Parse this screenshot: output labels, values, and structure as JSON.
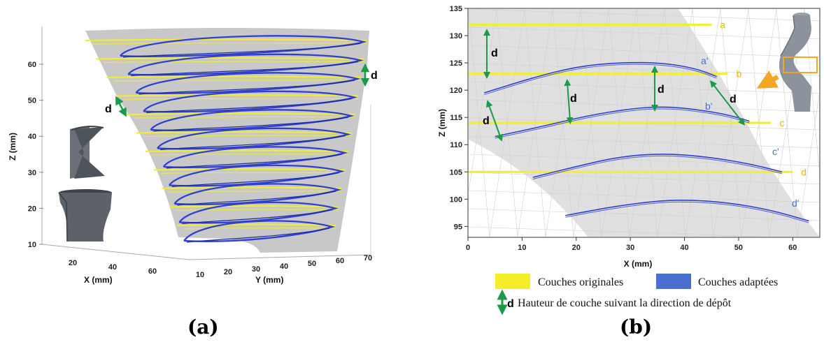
{
  "captions": {
    "a": "(a)",
    "b": "(b)"
  },
  "colors": {
    "original": "#f4ee2a",
    "adapted": "#2f3fd0",
    "arrow": "#1a9a4a",
    "surface": "#c8c8c8",
    "orange": "#f5a623",
    "orig_label": "#f0b400",
    "adapt_label": "#4a6fd0"
  },
  "chart_data": [
    {
      "type": "line",
      "panel": "a",
      "title": "",
      "xlabel": "X (mm)",
      "ylabel": "Z (mm)",
      "zlabel": "Y (mm)",
      "x_ticks": [
        "20",
        "40",
        "60"
      ],
      "y_ticks": [
        "10",
        "20",
        "30",
        "40",
        "50",
        "60"
      ],
      "z_ticks": [
        "10",
        "20",
        "30",
        "40",
        "50",
        "60",
        "70"
      ],
      "annotations": [
        "d",
        "d"
      ]
    },
    {
      "type": "line",
      "panel": "b",
      "title": "",
      "xlabel": "X (mm)",
      "ylabel": "Z (mm)",
      "xlim": [
        0,
        65
      ],
      "ylim": [
        93,
        135
      ],
      "x_ticks": [
        0,
        10,
        20,
        30,
        40,
        50,
        60
      ],
      "y_ticks": [
        95,
        100,
        105,
        110,
        115,
        120,
        125,
        130,
        135
      ],
      "series": [
        {
          "name": "Couches originales",
          "lines": [
            {
              "label": "a",
              "z": 132,
              "x": [
                0,
                45
              ]
            },
            {
              "label": "b",
              "z": 123,
              "x": [
                0,
                48
              ]
            },
            {
              "label": "c",
              "z": 114,
              "x": [
                0,
                56
              ]
            },
            {
              "label": "d",
              "z": 105,
              "x": [
                0,
                60
              ]
            }
          ]
        },
        {
          "name": "Couches adaptées",
          "curves": [
            {
              "label": "a'",
              "x": [
                3,
                12,
                20,
                28,
                36,
                42,
                46
              ],
              "z": [
                119.5,
                122.3,
                124.3,
                125.1,
                125.0,
                124.0,
                122.5
              ]
            },
            {
              "label": "b'",
              "x": [
                5,
                14,
                22,
                30,
                36,
                42,
                48,
                52
              ],
              "z": [
                111.5,
                113.4,
                115.3,
                116.6,
                117.0,
                116.5,
                115.5,
                114.3
              ]
            },
            {
              "label": "c'",
              "x": [
                12,
                20,
                28,
                36,
                44,
                52,
                58
              ],
              "z": [
                104.0,
                106.0,
                107.8,
                108.4,
                107.8,
                106.5,
                105.0
              ]
            },
            {
              "label": "d'",
              "x": [
                18,
                26,
                34,
                40,
                48,
                56,
                63
              ],
              "z": [
                97.0,
                98.5,
                99.6,
                99.9,
                99.4,
                98.0,
                96.0
              ]
            }
          ]
        }
      ],
      "annotations": [
        "d",
        "d",
        "d",
        "d"
      ]
    }
  ],
  "legend": {
    "original": "Couches originales",
    "adapted": "Couches adaptées",
    "d_symbol": "d",
    "d_text": "Hauteur de couche suivant la direction de dépôt"
  }
}
